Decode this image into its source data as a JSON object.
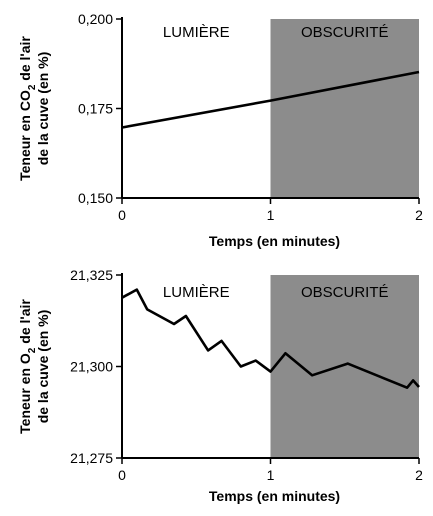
{
  "chart_data": [
    {
      "type": "line",
      "xlabel": "Temps (en minutes)",
      "ylabel_line1_prefix": "Teneur en CO",
      "ylabel_line1_sub": "2",
      "ylabel_line1_suffix": " de l'air",
      "ylabel_line2": "de la cuve (en %)",
      "xlim": [
        0,
        2
      ],
      "ylim": [
        0.15,
        0.2
      ],
      "x_ticks": [
        {
          "value": 0,
          "label": "0"
        },
        {
          "value": 1,
          "label": "1"
        },
        {
          "value": 2,
          "label": "2"
        }
      ],
      "y_ticks": [
        {
          "value": 0.15,
          "label": "0,150"
        },
        {
          "value": 0.175,
          "label": "0,175"
        },
        {
          "value": 0.2,
          "label": "0,200"
        }
      ],
      "regions": [
        {
          "x_start": 0,
          "x_end": 1,
          "label": "LUMIÈRE",
          "color": "#ffffff"
        },
        {
          "x_start": 1,
          "x_end": 2,
          "label": "OBSCURITÉ",
          "color": "#8c8c8c"
        }
      ],
      "series": [
        {
          "x": [
            0,
            1,
            2
          ],
          "y": [
            0.1697,
            0.1772,
            0.1852
          ]
        }
      ]
    },
    {
      "type": "line",
      "xlabel": "Temps (en minutes)",
      "ylabel_line1_prefix": "Teneur en O",
      "ylabel_line1_sub": "2",
      "ylabel_line1_suffix": " de l'air",
      "ylabel_line2": "de la cuve (en %)",
      "xlim": [
        0,
        2
      ],
      "ylim": [
        21.275,
        21.325
      ],
      "x_ticks": [
        {
          "value": 0,
          "label": "0"
        },
        {
          "value": 1,
          "label": "1"
        },
        {
          "value": 2,
          "label": "2"
        }
      ],
      "y_ticks": [
        {
          "value": 21.275,
          "label": "21,275"
        },
        {
          "value": 21.3,
          "label": "21,300"
        },
        {
          "value": 21.325,
          "label": "21,325"
        }
      ],
      "regions": [
        {
          "x_start": 0,
          "x_end": 1,
          "label": "LUMIÈRE",
          "color": "#ffffff"
        },
        {
          "x_start": 1,
          "x_end": 2,
          "label": "OBSCURITÉ",
          "color": "#8c8c8c"
        }
      ],
      "series": [
        {
          "x": [
            0,
            0.1,
            0.17,
            0.35,
            0.43,
            0.58,
            0.67,
            0.8,
            0.9,
            1.0,
            1.1,
            1.28,
            1.52,
            1.92,
            1.96,
            2.0
          ],
          "y": [
            21.3188,
            21.321,
            21.3156,
            21.3116,
            21.3138,
            21.3044,
            21.307,
            21.3,
            21.3016,
            21.2986,
            21.3036,
            21.2976,
            21.3008,
            21.2942,
            21.2962,
            21.2944
          ]
        }
      ]
    }
  ]
}
